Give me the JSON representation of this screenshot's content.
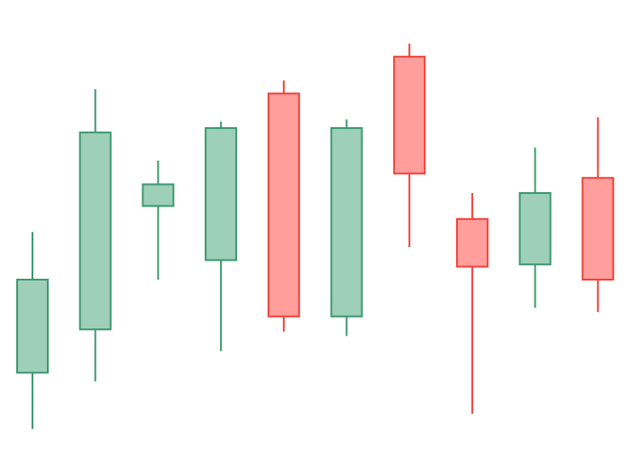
{
  "chart_data": {
    "type": "candlestick",
    "title": "",
    "xlabel": "",
    "ylabel": "",
    "axes_visible": false,
    "grid": false,
    "legend": "none",
    "ylim": [
      0,
      100
    ],
    "candles": [
      {
        "open": 16.0,
        "high": 48.5,
        "low": 3.0,
        "close": 37.5
      },
      {
        "open": 26.0,
        "high": 81.5,
        "low": 14.0,
        "close": 71.5
      },
      {
        "open": 54.5,
        "high": 65.0,
        "low": 37.5,
        "close": 59.5
      },
      {
        "open": 42.0,
        "high": 74.0,
        "low": 21.0,
        "close": 72.5
      },
      {
        "open": 80.5,
        "high": 83.5,
        "low": 25.5,
        "close": 29.0
      },
      {
        "open": 29.0,
        "high": 74.5,
        "low": 24.5,
        "close": 72.5
      },
      {
        "open": 89.0,
        "high": 92.0,
        "low": 45.0,
        "close": 62.0
      },
      {
        "open": 51.5,
        "high": 57.5,
        "low": 6.5,
        "close": 40.5
      },
      {
        "open": 41.0,
        "high": 68.0,
        "low": 31.0,
        "close": 57.5
      },
      {
        "open": 61.0,
        "high": 75.0,
        "low": 30.0,
        "close": 37.5
      }
    ],
    "colors": {
      "increasing_fill": "#9ecfb8",
      "increasing_line": "#3d9970",
      "decreasing_fill": "#ff9e9a",
      "decreasing_line": "#f0423a"
    }
  }
}
